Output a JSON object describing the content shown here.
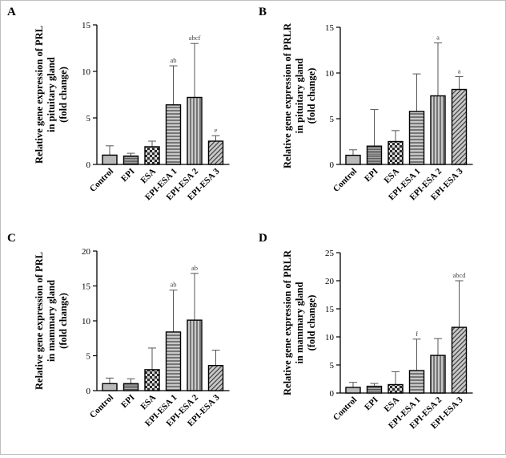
{
  "colors": {
    "bar_fill": "#b9b9b9",
    "axis": "#000000",
    "error_bar": "#555555"
  },
  "chart_data": [
    {
      "type": "bar",
      "panel": "A",
      "ylabel_lines": [
        "Relative gene expression of PRL",
        "in pituitary gland",
        "(fold change)"
      ],
      "categories": [
        "Control",
        "EPI",
        "ESA",
        "EPI-ESA 1",
        "EPI-ESA 2",
        "EPI-ESA 3"
      ],
      "values": [
        1.0,
        0.9,
        1.9,
        6.4,
        7.2,
        2.5
      ],
      "error_upper": [
        2.0,
        1.2,
        2.5,
        10.6,
        13.0,
        3.1
      ],
      "annotations": [
        "",
        "",
        "",
        "ab",
        "abcf",
        "e"
      ],
      "patterns": [
        "solid",
        "dense-horizontal",
        "checker",
        "horizontal",
        "vertical",
        "diagonal"
      ],
      "ylim": [
        0,
        15
      ],
      "yticks": [
        0,
        5,
        10,
        15
      ],
      "grid": false
    },
    {
      "type": "bar",
      "panel": "B",
      "ylabel_lines": [
        "Relative gene expression of PRLR",
        "in pituitary gland",
        "(fold change)"
      ],
      "categories": [
        "Control",
        "EPI",
        "ESA",
        "EPI-ESA 1",
        "EPI-ESA 2",
        "EPI-ESA 3"
      ],
      "values": [
        1.0,
        2.0,
        2.5,
        5.8,
        7.5,
        8.2
      ],
      "error_upper": [
        1.6,
        6.0,
        3.7,
        9.9,
        13.3,
        9.6
      ],
      "annotations": [
        "",
        "",
        "",
        "",
        "a",
        "a"
      ],
      "patterns": [
        "solid",
        "dense-horizontal",
        "checker",
        "horizontal",
        "vertical",
        "diagonal"
      ],
      "ylim": [
        0,
        15
      ],
      "yticks": [
        0,
        5,
        10,
        15
      ],
      "grid": false
    },
    {
      "type": "bar",
      "panel": "C",
      "ylabel_lines": [
        "Relative gene expression of PRL",
        "in mammary gland",
        "(fold change)"
      ],
      "categories": [
        "Control",
        "EPI",
        "ESA",
        "EPI-ESA 1",
        "EPI-ESA 2",
        "EPI-ESA 3"
      ],
      "values": [
        1.0,
        1.0,
        3.0,
        8.4,
        10.1,
        3.6
      ],
      "error_upper": [
        1.8,
        1.7,
        6.1,
        14.4,
        16.8,
        5.8
      ],
      "annotations": [
        "",
        "",
        "",
        "ab",
        "ab",
        ""
      ],
      "patterns": [
        "solid",
        "dense-horizontal",
        "checker",
        "horizontal",
        "vertical",
        "diagonal"
      ],
      "ylim": [
        0,
        20
      ],
      "yticks": [
        0,
        5,
        10,
        15,
        20
      ],
      "grid": false
    },
    {
      "type": "bar",
      "panel": "D",
      "ylabel_lines": [
        "Relative gene expression of PRLR",
        "in mammary gland",
        "(fold change)"
      ],
      "categories": [
        "Control",
        "EPI",
        "ESA",
        "EPI-ESA 1",
        "EPI-ESA 2",
        "EPI-ESA 3"
      ],
      "values": [
        1.0,
        1.2,
        1.5,
        4.0,
        6.7,
        11.7
      ],
      "error_upper": [
        1.9,
        1.7,
        3.8,
        9.6,
        9.7,
        20.0
      ],
      "annotations": [
        "",
        "",
        "",
        "f",
        "",
        "abcd"
      ],
      "patterns": [
        "solid",
        "dense-horizontal",
        "checker",
        "horizontal",
        "vertical",
        "diagonal"
      ],
      "ylim": [
        0,
        25
      ],
      "yticks": [
        0,
        5,
        10,
        15,
        20,
        25
      ],
      "grid": false
    }
  ]
}
